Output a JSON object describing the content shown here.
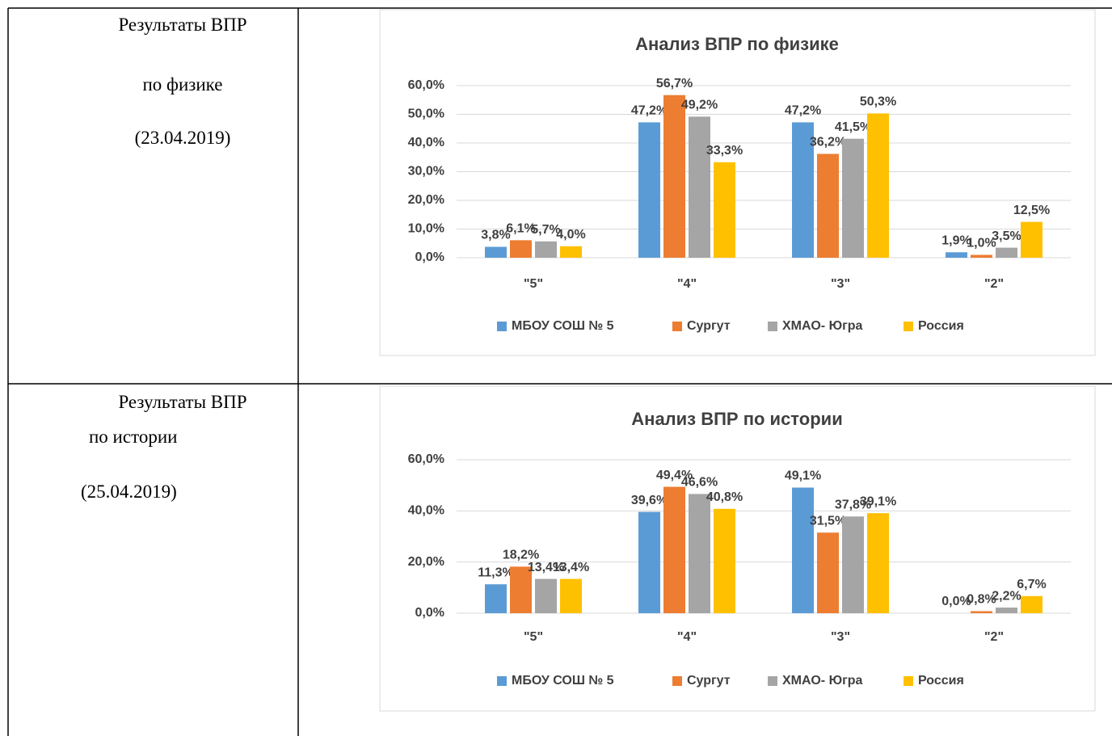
{
  "table": {
    "rows": [
      {
        "label": [
          "Результаты ВПР",
          "по физике",
          "(23.04.2019)"
        ]
      },
      {
        "label": [
          "Результаты ВПР",
          "по истории",
          "(25.04.2019)"
        ]
      }
    ]
  },
  "chart_data": [
    {
      "type": "bar",
      "title": "Анализ ВПР по физике",
      "categories": [
        "\"5\"",
        "\"4\"",
        "\"3\"",
        "\"2\""
      ],
      "series": [
        {
          "name": "МБОУ СОШ № 5",
          "color": "#5b9bd5",
          "values": [
            3.8,
            47.2,
            47.2,
            1.9
          ],
          "value_labels": [
            "3,8%",
            "47,2%",
            "47,2%",
            "1,9%"
          ]
        },
        {
          "name": "Сургут",
          "color": "#ed7d31",
          "values": [
            6.1,
            56.7,
            36.2,
            1.0
          ],
          "value_labels": [
            "6,1%",
            "56,7%",
            "36,2%",
            "1,0%"
          ]
        },
        {
          "name": "ХМАО- Югра",
          "color": "#a5a5a5",
          "values": [
            5.7,
            49.2,
            41.5,
            3.5
          ],
          "value_labels": [
            "5,7%",
            "49,2%",
            "41,5%",
            "3,5%"
          ]
        },
        {
          "name": "Россия",
          "color": "#ffc000",
          "values": [
            4.0,
            33.3,
            50.3,
            12.5
          ],
          "value_labels": [
            "4,0%",
            "33,3%",
            "50,3%",
            "12,5%"
          ]
        }
      ],
      "ylim": [
        0,
        60
      ],
      "yticks": [
        {
          "value": 0,
          "label": "0,0%"
        },
        {
          "value": 10,
          "label": "10,0%"
        },
        {
          "value": 20,
          "label": "20,0%"
        },
        {
          "value": 30,
          "label": "30,0%"
        },
        {
          "value": 40,
          "label": "40,0%"
        },
        {
          "value": 50,
          "label": "50,0%"
        },
        {
          "value": 60,
          "label": "60,0%"
        }
      ],
      "grid": true,
      "legend": "bottom"
    },
    {
      "type": "bar",
      "title": "Анализ ВПР по истории",
      "categories": [
        "\"5\"",
        "\"4\"",
        "\"3\"",
        "\"2\""
      ],
      "series": [
        {
          "name": "МБОУ СОШ № 5",
          "color": "#5b9bd5",
          "values": [
            11.3,
            39.6,
            49.1,
            0.0
          ],
          "value_labels": [
            "11,3%",
            "39,6%",
            "49,1%",
            "0,0%"
          ]
        },
        {
          "name": "Сургут",
          "color": "#ed7d31",
          "values": [
            18.2,
            49.4,
            31.5,
            0.8
          ],
          "value_labels": [
            "18,2%",
            "49,4%",
            "31,5%",
            "0,8%"
          ]
        },
        {
          "name": "ХМАО- Югра",
          "color": "#a5a5a5",
          "values": [
            13.4,
            46.6,
            37.8,
            2.2
          ],
          "value_labels": [
            "13,4%",
            "46,6%",
            "37,8%",
            "2,2%"
          ]
        },
        {
          "name": "Россия",
          "color": "#ffc000",
          "values": [
            13.4,
            40.8,
            39.1,
            6.7
          ],
          "value_labels": [
            "13,4%",
            "40,8%",
            "39,1%",
            "6,7%"
          ]
        }
      ],
      "ylim": [
        0,
        60
      ],
      "yticks": [
        {
          "value": 0,
          "label": "0,0%"
        },
        {
          "value": 20,
          "label": "20,0%"
        },
        {
          "value": 40,
          "label": "40,0%"
        },
        {
          "value": 60,
          "label": "60,0%"
        }
      ],
      "grid": true,
      "legend": "bottom"
    }
  ]
}
